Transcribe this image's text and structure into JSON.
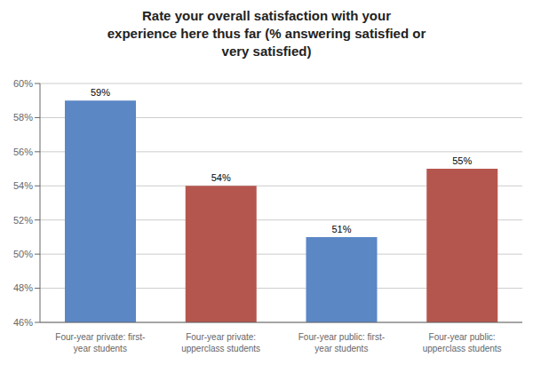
{
  "chart_data": {
    "type": "bar",
    "title": "Rate your overall satisfaction with your\nexperience here thus far (% answering satisfied or\nvery satisfied)",
    "categories": [
      "Four-year private: first-\nyear students",
      "Four-year private:\nupperclass students",
      "Four-year public: first-\nyear students",
      "Four-year public:\nupperclass students"
    ],
    "values": [
      59,
      54,
      51,
      55
    ],
    "value_labels": [
      "59%",
      "54%",
      "51%",
      "55%"
    ],
    "data_labels": true,
    "colors": [
      "#5B87C5",
      "#B5564E",
      "#5B87C5",
      "#B5564E"
    ],
    "ylim": [
      46,
      60
    ],
    "yticks": [
      {
        "value": 46,
        "label": "46%"
      },
      {
        "value": 48,
        "label": "48%"
      },
      {
        "value": 50,
        "label": "50%"
      },
      {
        "value": 52,
        "label": "52%"
      },
      {
        "value": 54,
        "label": "54%"
      },
      {
        "value": 56,
        "label": "56%"
      },
      {
        "value": 58,
        "label": "58%"
      },
      {
        "value": 60,
        "label": "60%"
      }
    ],
    "grid": true
  }
}
